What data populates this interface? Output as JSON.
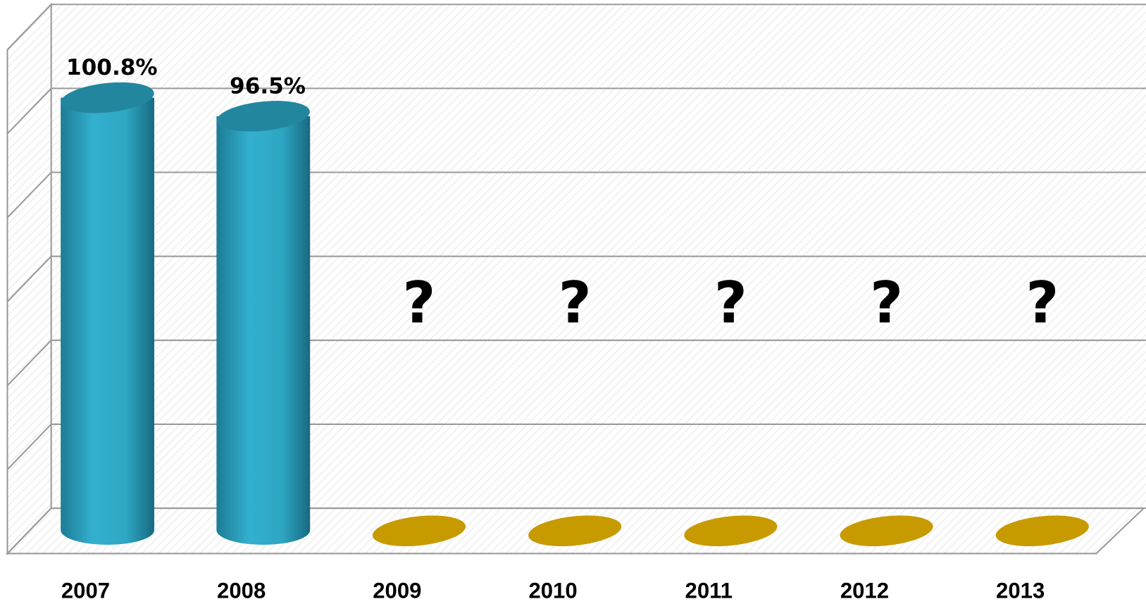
{
  "chart_data": {
    "type": "cylinder",
    "categories": [
      "2007",
      "2008",
      "2009",
      "2010",
      "2011",
      "2012",
      "2013"
    ],
    "values": [
      100.8,
      96.5,
      null,
      null,
      null,
      null,
      null
    ],
    "value_labels": [
      "100.8%",
      "96.5%",
      "?",
      "?",
      "?",
      "?",
      "?"
    ],
    "color": "#2eaac8",
    "empty_color": "#c79a00",
    "ylim": [
      0,
      120
    ],
    "yticks": [
      0,
      20,
      40,
      60,
      80,
      100,
      120
    ],
    "grid": true
  }
}
